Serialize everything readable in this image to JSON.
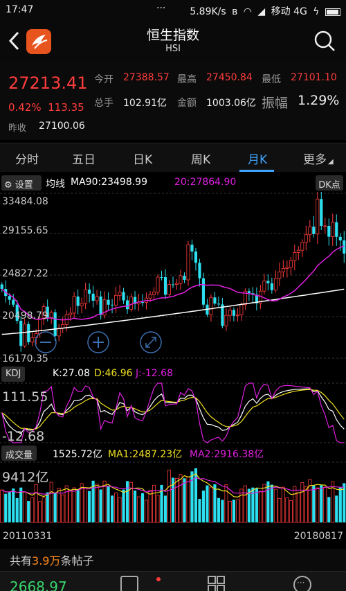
{
  "status": {
    "time": "17:47",
    "dots": "···",
    "speed": "5.89K/s",
    "carrier": "移动 4G"
  },
  "header": {
    "title": "恒生指数",
    "subtitle": "HSI"
  },
  "quote": {
    "price": "27213.41",
    "change_pct": "0.42%",
    "change": "113.35",
    "prev_close_label": "昨收",
    "prev_close": "27100.06",
    "open_label": "今开",
    "open": "27388.57",
    "high_label": "最高",
    "high": "27450.84",
    "low_label": "最低",
    "low": "27101.10",
    "volume_label": "总手",
    "volume": "102.91亿",
    "amount_label": "金额",
    "amount": "1003.06亿",
    "amplitude_label": "振幅",
    "amplitude": "1.29%"
  },
  "tabs": [
    "分时",
    "五日",
    "日K",
    "周K",
    "月K",
    "更多"
  ],
  "active_tab": "月K",
  "ma_legend": {
    "settings": "设置",
    "label": "均线",
    "ma90": "MA90:23498.99",
    "ma20": "20:27864.90",
    "dk": "DK点"
  },
  "price_axis": {
    "top": "33484.08",
    "upper": "29155.65",
    "mid": "24827.22",
    "lower": "20498.79",
    "bottom": "16170.35"
  },
  "kdj": {
    "label": "KDJ",
    "k": "K:27.08",
    "d": "D:46.96",
    "j": "J:-12.68",
    "top": "111.55",
    "bottom": "-12.68"
  },
  "volume_panel": {
    "label": "成交量",
    "vol": "1525.72亿",
    "ma1": "MA1:2487.23亿",
    "ma2": "MA2:2916.38亿",
    "top": "9412亿"
  },
  "dates": {
    "start": "20110331",
    "end": "20180817"
  },
  "posts": {
    "prefix": "共有",
    "count": "3.9万",
    "suffix": "条帖子"
  },
  "bottom": {
    "price": "2668.97"
  },
  "colors": {
    "up": "#ff3c3c",
    "down": "#2de0f0",
    "ma_white": "#ffffff",
    "ma_magenta": "#e020e0",
    "accent": "#3ea6ff",
    "yellow": "#f0e020"
  },
  "chart_data": {
    "type": "candlestick",
    "title": "恒生指数 HSI 月K",
    "ylim": [
      16170.35,
      33484.08
    ],
    "closes": [
      23527,
      22800,
      22398,
      21891,
      20212,
      17592,
      19864,
      17989,
      18434,
      18877,
      20390,
      21680,
      20556,
      21094,
      18630,
      19441,
      19821,
      20840,
      21008,
      22737,
      21756,
      22030,
      23459,
      23034,
      22300,
      22737,
      20803,
      22393,
      21883,
      21848,
      22860,
      23206,
      22335,
      21415,
      22689,
      21960,
      22151,
      22133,
      22573,
      22932,
      23190,
      24757,
      24752,
      22932,
      23998,
      23987,
      24100,
      24900,
      24471,
      28133,
      27424,
      26250,
      24636,
      21891,
      20846,
      22640,
      21996,
      21914,
      19683,
      20777,
      21336,
      20734,
      20815,
      21891,
      23297,
      23084,
      22934,
      22039,
      23297,
      24364,
      24112,
      23400,
      24615,
      25302,
      25661,
      25765,
      26468,
      27323,
      27554,
      28380,
      29177,
      30003,
      29241,
      32887,
      30093,
      30093,
      28967,
      30469,
      28955,
      28583,
      27213
    ],
    "ma90_last": 23498.99,
    "ma20_last": 27864.9,
    "kdj_last": {
      "K": 27.08,
      "D": 46.96,
      "J": -12.68
    },
    "volume_last_yi": 1525.72,
    "x_start": "20110331",
    "x_end": "20180817"
  }
}
